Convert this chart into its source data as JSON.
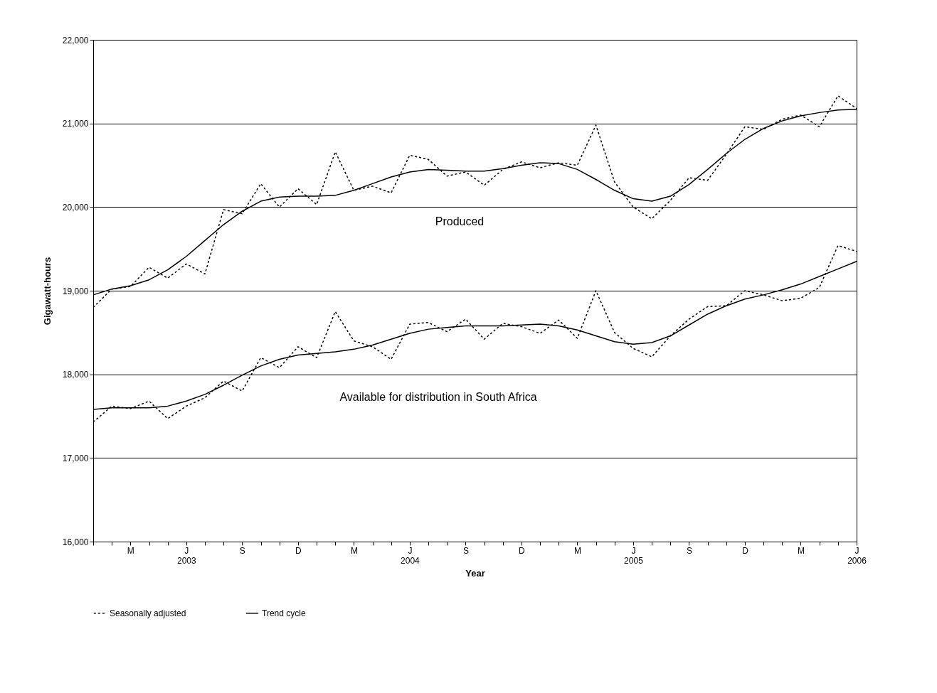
{
  "chart_data": {
    "type": "line",
    "xlabel": "Year",
    "ylabel": "Gigawatt-hours",
    "categories": [
      null,
      null,
      "M",
      null,
      null,
      "J\n2003",
      null,
      null,
      "S",
      null,
      null,
      "D",
      null,
      null,
      "M",
      null,
      null,
      "J\n2004",
      null,
      null,
      "S",
      null,
      null,
      "D",
      null,
      null,
      "M",
      null,
      null,
      "J\n2005",
      null,
      null,
      "S",
      null,
      null,
      "D",
      null,
      null,
      "M",
      null,
      null,
      "J\n2006"
    ],
    "series": [
      {
        "name": "Seasonally adjusted",
        "color": "#000000",
        "line_style": "dotted",
        "values": [
          18800,
          19020,
          19050,
          19280,
          19150,
          19320,
          19200,
          19970,
          19920,
          20280,
          20000,
          20220,
          20030,
          20660,
          20200,
          20250,
          20170,
          20620,
          20570,
          20370,
          20420,
          20260,
          20450,
          20540,
          20470,
          20530,
          20500,
          20980,
          20300,
          20000,
          19860,
          20080,
          20350,
          20320,
          20630,
          20960,
          20930,
          21050,
          21100,
          20960,
          21330,
          21180
        ]
      },
      {
        "name": "Trend cycle",
        "color": "#000000",
        "line_style": "solid",
        "values": [
          18950,
          19020,
          19060,
          19130,
          19250,
          19410,
          19600,
          19790,
          19950,
          20070,
          20120,
          20130,
          20130,
          20140,
          20200,
          20280,
          20360,
          20420,
          20450,
          20440,
          20430,
          20430,
          20460,
          20500,
          20530,
          20520,
          20450,
          20330,
          20200,
          20100,
          20070,
          20130,
          20270,
          20450,
          20640,
          20810,
          20940,
          21030,
          21090,
          21130,
          21160,
          21170
        ]
      },
      {
        "color": "#000000",
        "line_style": "dotted",
        "values": [
          17430,
          17620,
          17590,
          17680,
          17470,
          17620,
          17720,
          17920,
          17800,
          18200,
          18080,
          18330,
          18200,
          18750,
          18400,
          18330,
          18180,
          18600,
          18620,
          18510,
          18660,
          18420,
          18610,
          18570,
          18490,
          18650,
          18430,
          19000,
          18500,
          18310,
          18210,
          18460,
          18660,
          18810,
          18820,
          19000,
          18950,
          18880,
          18910,
          19040,
          19540,
          19470
        ]
      },
      {
        "color": "#000000",
        "line_style": "solid",
        "values": [
          17580,
          17600,
          17600,
          17600,
          17620,
          17680,
          17760,
          17870,
          17990,
          18100,
          18180,
          18230,
          18250,
          18270,
          18300,
          18350,
          18420,
          18490,
          18540,
          18560,
          18580,
          18580,
          18580,
          18590,
          18600,
          18580,
          18530,
          18460,
          18390,
          18360,
          18380,
          18460,
          18590,
          18720,
          18820,
          18900,
          18950,
          19010,
          19080,
          19170,
          19260,
          19350
        ]
      }
    ],
    "ylim": [
      16000,
      22000
    ],
    "yticks": [
      {
        "value": 16000,
        "label": "16,000"
      },
      {
        "value": 17000,
        "label": "17,000"
      },
      {
        "value": 18000,
        "label": "18,000"
      },
      {
        "value": 19000,
        "label": "19,000"
      },
      {
        "value": 20000,
        "label": "20,000"
      },
      {
        "value": 21000,
        "label": "21,000"
      },
      {
        "value": 22000,
        "label": "22,000"
      }
    ],
    "grid": "y",
    "legend": "bottom",
    "annotations": [
      "Produced",
      "Available for distribution in South Africa"
    ]
  }
}
